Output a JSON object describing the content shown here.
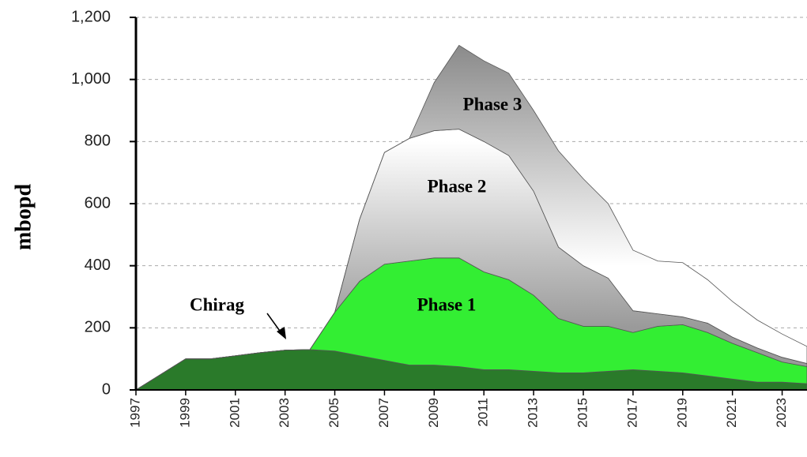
{
  "chart_data": {
    "type": "stacked_area",
    "ylabel": "mbopd",
    "x": [
      1997,
      1998,
      1999,
      2000,
      2001,
      2002,
      2003,
      2004,
      2005,
      2006,
      2007,
      2008,
      2009,
      2010,
      2011,
      2012,
      2013,
      2014,
      2015,
      2016,
      2017,
      2018,
      2019,
      2020,
      2021,
      2022,
      2023,
      2024
    ],
    "series": [
      {
        "name": "Chirag",
        "color": "#2a7a2a",
        "values": [
          0,
          50,
          100,
          100,
          110,
          120,
          128,
          130,
          125,
          110,
          95,
          80,
          80,
          75,
          65,
          65,
          60,
          55,
          55,
          60,
          65,
          60,
          55,
          45,
          35,
          25,
          25,
          20
        ]
      },
      {
        "name": "Phase 1",
        "color": "#33ee33",
        "values": [
          0,
          0,
          0,
          0,
          0,
          0,
          0,
          0,
          125,
          240,
          310,
          335,
          345,
          350,
          315,
          290,
          245,
          175,
          150,
          145,
          120,
          145,
          155,
          140,
          115,
          95,
          65,
          55
        ]
      },
      {
        "name": "Phase 2",
        "color": "#ffffff",
        "values": [
          0,
          0,
          0,
          0,
          0,
          0,
          0,
          0,
          0,
          200,
          360,
          395,
          410,
          415,
          420,
          400,
          335,
          230,
          195,
          155,
          70,
          40,
          25,
          30,
          20,
          15,
          15,
          10
        ]
      },
      {
        "name": "Phase 3",
        "color": "#8c8c8c",
        "values": [
          0,
          0,
          0,
          0,
          0,
          0,
          0,
          0,
          0,
          0,
          0,
          0,
          155,
          270,
          260,
          265,
          260,
          310,
          280,
          240,
          195,
          170,
          175,
          140,
          115,
          90,
          75,
          55
        ]
      }
    ],
    "xlim": [
      1997,
      2024
    ],
    "xticks": [
      1997,
      1999,
      2001,
      2003,
      2005,
      2007,
      2009,
      2011,
      2013,
      2015,
      2017,
      2019,
      2021,
      2023
    ],
    "ylim": [
      0,
      1200
    ],
    "yticks": [
      0,
      200,
      400,
      600,
      800,
      {
        "value": 1000,
        "label": "1,000"
      },
      {
        "value": 1200,
        "label": "1,200"
      }
    ],
    "grid": true
  }
}
